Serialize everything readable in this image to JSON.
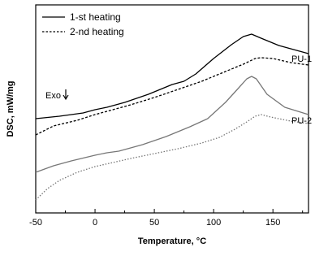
{
  "chart_data": {
    "type": "line",
    "xlabel": "Temperature, °C",
    "ylabel": "DSC, mW/mg",
    "xlim": [
      -50,
      180
    ],
    "xticks": [
      -50,
      0,
      50,
      100,
      150
    ],
    "yticks_shown": false,
    "legend_position": "top-left",
    "legend": [
      {
        "label": "1-st heating",
        "style": "solid"
      },
      {
        "label": "2-nd heating",
        "style": "dashed"
      }
    ],
    "exo_label": "Exo",
    "series": [
      {
        "name": "1-st heating",
        "sample": "PU-1",
        "color": "#000000",
        "style": "solid",
        "x": [
          -50,
          -30,
          -10,
          0,
          10,
          25,
          45,
          65,
          75,
          85,
          100,
          115,
          125,
          132,
          140,
          155,
          170,
          180
        ],
        "y": [
          146,
          143,
          139,
          135,
          132,
          126,
          116,
          104,
          100,
          91,
          72,
          55,
          45,
          42,
          47,
          56,
          62,
          66
        ]
      },
      {
        "name": "2-nd heating",
        "sample": "PU-1",
        "color": "#000000",
        "style": "dashed",
        "x": [
          -50,
          -35,
          -15,
          0,
          10,
          30,
          50,
          70,
          90,
          110,
          125,
          135,
          140,
          150,
          165,
          180
        ],
        "y": [
          166,
          155,
          148,
          141,
          137,
          129,
          120,
          110,
          100,
          88,
          79,
          72,
          71,
          72,
          77,
          80
        ]
      },
      {
        "name": "1-st heating",
        "sample": "PU-2",
        "color": "#777777",
        "style": "solid",
        "x": [
          -50,
          -35,
          -20,
          0,
          10,
          20,
          40,
          60,
          80,
          95,
          110,
          120,
          128,
          132,
          136,
          145,
          160,
          180
        ],
        "y": [
          212,
          204,
          198,
          191,
          188,
          186,
          178,
          168,
          156,
          146,
          126,
          110,
          97,
          94,
          97,
          116,
          132,
          141
        ]
      },
      {
        "name": "2-nd heating",
        "sample": "PU-2",
        "color": "#777777",
        "style": "dotted",
        "x": [
          -50,
          -40,
          -30,
          -15,
          0,
          15,
          30,
          50,
          70,
          90,
          105,
          118,
          128,
          135,
          140,
          148,
          165,
          180
        ],
        "y": [
          246,
          232,
          222,
          212,
          205,
          200,
          195,
          189,
          183,
          176,
          169,
          159,
          150,
          143,
          141,
          144,
          149,
          152
        ]
      }
    ],
    "annotations": [
      {
        "text": "PU-1"
      },
      {
        "text": "PU-2"
      }
    ]
  }
}
